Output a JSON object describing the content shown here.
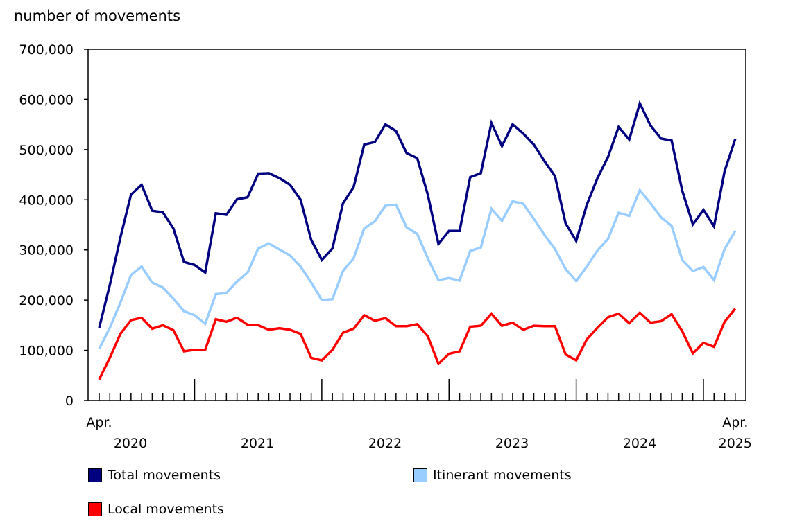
{
  "chart_data": {
    "type": "line",
    "ylabel": "number of movements",
    "ylim": [
      0,
      700000
    ],
    "yticks": [
      0,
      100000,
      200000,
      300000,
      400000,
      500000,
      600000,
      700000
    ],
    "ytick_labels": [
      "0",
      "100,000",
      "200,000",
      "300,000",
      "400,000",
      "500,000",
      "600,000",
      "700,000"
    ],
    "x_start": "2020-04",
    "x_end": "2025-04",
    "x_labels": {
      "start_month": "Apr.",
      "end_month": "Apr.",
      "years": [
        "2020",
        "2021",
        "2022",
        "2023",
        "2024",
        "2025"
      ]
    },
    "grid": false,
    "legend_placement": "bottom",
    "series": [
      {
        "name": "Total movements",
        "color": "#000080",
        "values": [
          145000,
          230000,
          325000,
          410000,
          430000,
          378000,
          375000,
          343000,
          276000,
          270000,
          255000,
          373000,
          370000,
          401000,
          405000,
          452000,
          453000,
          443000,
          430000,
          400000,
          320000,
          280000,
          303000,
          393000,
          425000,
          510000,
          515000,
          550000,
          537000,
          493000,
          483000,
          410000,
          312000,
          338000,
          338000,
          445000,
          453000,
          553000,
          507000,
          550000,
          532000,
          510000,
          477000,
          447000,
          353000,
          318000,
          390000,
          443000,
          485000,
          545000,
          520000,
          592000,
          548000,
          522000,
          518000,
          418000,
          351000,
          380000,
          347000,
          457000,
          521000
        ]
      },
      {
        "name": "Itinerant movements",
        "color": "#99ccff",
        "values": [
          103000,
          145000,
          195000,
          250000,
          267000,
          235000,
          225000,
          203000,
          178000,
          170000,
          153000,
          212000,
          214000,
          237000,
          255000,
          303000,
          313000,
          301000,
          289000,
          267000,
          235000,
          200000,
          202000,
          258000,
          283000,
          343000,
          357000,
          388000,
          390000,
          345000,
          332000,
          283000,
          240000,
          244000,
          239000,
          298000,
          305000,
          382000,
          358000,
          397000,
          392000,
          362000,
          330000,
          302000,
          262000,
          238000,
          267000,
          299000,
          322000,
          374000,
          368000,
          419000,
          393000,
          365000,
          348000,
          280000,
          258000,
          266000,
          240000,
          302000,
          338000
        ]
      },
      {
        "name": "Local movements",
        "color": "#ff0000",
        "values": [
          42000,
          85000,
          133000,
          160000,
          165000,
          143000,
          150000,
          140000,
          98000,
          101000,
          101000,
          162000,
          157000,
          165000,
          151000,
          150000,
          141000,
          144000,
          141000,
          133000,
          85000,
          80000,
          101000,
          135000,
          143000,
          170000,
          159000,
          164000,
          148000,
          148000,
          152000,
          128000,
          73000,
          93000,
          98000,
          147000,
          149000,
          173000,
          149000,
          155000,
          141000,
          149000,
          148000,
          148000,
          92000,
          80000,
          122000,
          145000,
          166000,
          173000,
          154000,
          175000,
          155000,
          158000,
          172000,
          138000,
          94000,
          115000,
          107000,
          157000,
          183000
        ]
      }
    ]
  }
}
